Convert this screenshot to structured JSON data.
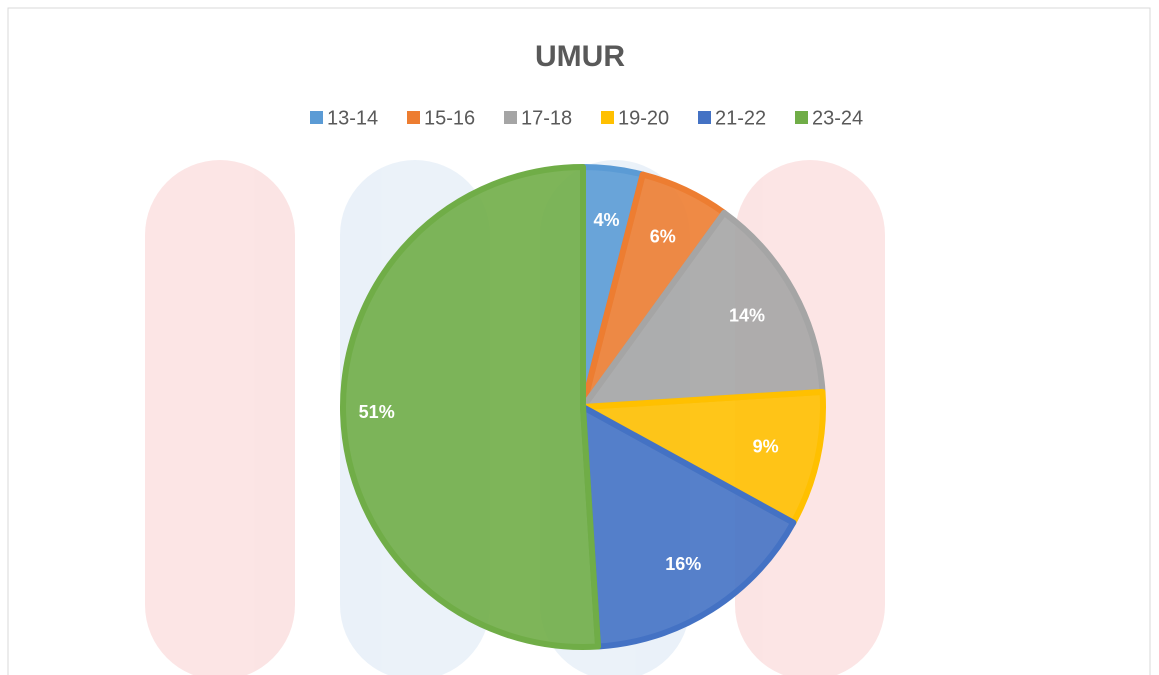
{
  "chart_data": {
    "type": "pie",
    "title": "UMUR",
    "categories": [
      "13-14",
      "15-16",
      "17-18",
      "19-20",
      "21-22",
      "23-24"
    ],
    "values": [
      4,
      6,
      14,
      9,
      16,
      51
    ],
    "value_labels": [
      "4%",
      "6%",
      "14%",
      "9%",
      "16%",
      "51%"
    ],
    "colors": [
      "#5b9bd5",
      "#ed7d31",
      "#a5a5a5",
      "#ffc000",
      "#4472c4",
      "#70ad47"
    ],
    "legend": "top"
  }
}
